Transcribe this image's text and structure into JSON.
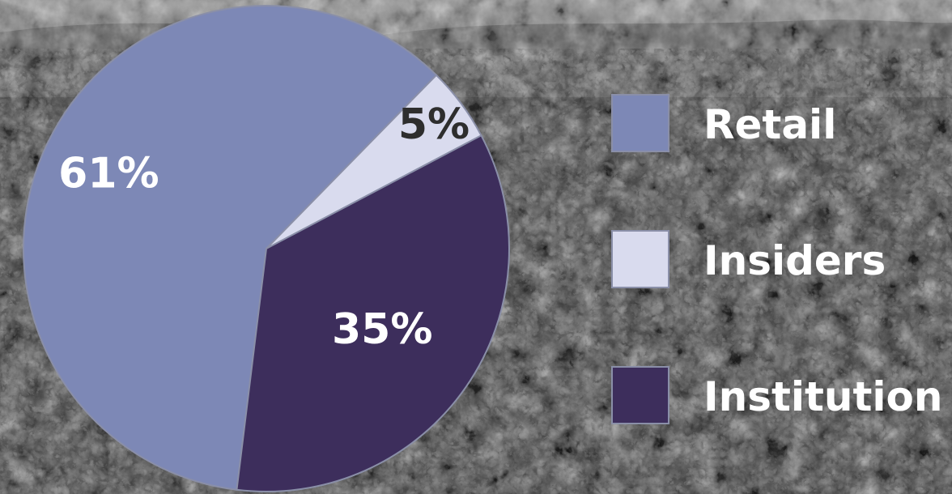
{
  "chart_data": {
    "type": "pie",
    "title": "",
    "categories": [
      "Retail",
      "Insiders",
      "Institution"
    ],
    "values": [
      61,
      5,
      35
    ],
    "data_labels": [
      "61%",
      "5%",
      "35%"
    ],
    "legend_position": "right",
    "colors": {
      "Retail": "#7d88b6",
      "Insiders": "#d9dbee",
      "Institution": "#3d2e5c"
    },
    "label_colors": {
      "Retail": "#ffffff",
      "Insiders": "#2e2e2e",
      "Institution": "#ffffff"
    }
  },
  "legend": {
    "items": [
      {
        "label": "Retail",
        "color": "#7d88b6"
      },
      {
        "label": "Insiders",
        "color": "#d9dbee"
      },
      {
        "label": "Institution",
        "color": "#3d2e5c"
      }
    ]
  },
  "background": {
    "description_icon": "foliage-photo-background"
  }
}
